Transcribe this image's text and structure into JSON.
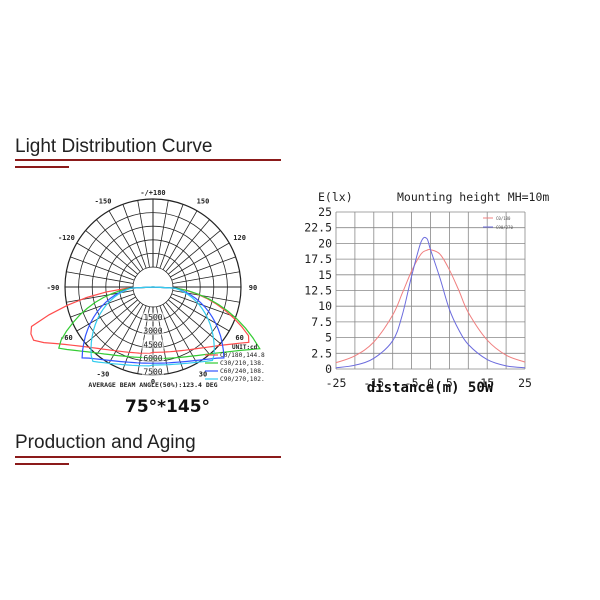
{
  "sections": [
    {
      "title": "Light Distribution Curve"
    },
    {
      "title": "Production and Aging"
    }
  ],
  "polar_chart": {
    "caption": "75°*145°",
    "angle_labels": [
      {
        "label": "-/+180",
        "angle": 180
      },
      {
        "label": "-150",
        "angle": -150
      },
      {
        "label": "150",
        "angle": 150
      },
      {
        "label": "-120",
        "angle": -120
      },
      {
        "label": "120",
        "angle": 120
      },
      {
        "label": "-90",
        "angle": -90
      },
      {
        "label": "90",
        "angle": 90
      },
      {
        "label": "-60",
        "angle": -60
      },
      {
        "label": "60",
        "angle": 60
      },
      {
        "label": "-30",
        "angle": -30
      },
      {
        "label": "30",
        "angle": 30
      },
      {
        "label": "0",
        "angle": 0
      }
    ],
    "radial_labels": [
      "1500",
      "3000",
      "4500",
      "6000",
      "7500"
    ],
    "unit_label": "UNIT:cd",
    "footer": "AVERAGE BEAM ANGLE(50%):123.4 DEG",
    "legend": [
      {
        "label": "C0/180,144.8",
        "color": "#ff4d4d"
      },
      {
        "label": "C30/210,138.",
        "color": "#33cc33"
      },
      {
        "label": "C60/240,108.",
        "color": "#3355ff"
      },
      {
        "label": "C90/270,102.",
        "color": "#33ccee"
      }
    ]
  },
  "chart_data": {
    "type": "line",
    "title": "Mounting height  MH=10m",
    "xlabel": "distance(m) 50W",
    "ylabel": "E(lx)",
    "xlim": [
      -25,
      25
    ],
    "ylim": [
      0,
      25
    ],
    "x_ticks": [
      "-25",
      "-15",
      "-5",
      "0",
      "5",
      "15",
      "25"
    ],
    "x_tick_values": [
      -25,
      -15,
      -5,
      0,
      5,
      15,
      25
    ],
    "y_ticks": [
      "0",
      "2.5",
      "5",
      "7.5",
      "10",
      "12.5",
      "15",
      "17.5",
      "20",
      "22.5",
      "25"
    ],
    "grid": true,
    "legend_position": "upper right",
    "x": [
      -25,
      -20,
      -15,
      -10,
      -7.5,
      -5,
      -2.5,
      -1,
      0,
      2.5,
      5,
      7.5,
      10,
      15,
      20,
      25
    ],
    "series": [
      {
        "name": "C0/180",
        "color": "#f08080",
        "values": [
          1.0,
          2.1,
          4.3,
          8.6,
          12.0,
          15.6,
          18.3,
          18.9,
          19.0,
          18.3,
          15.8,
          12.5,
          9.0,
          4.6,
          2.2,
          1.1
        ]
      },
      {
        "name": "C90/270",
        "color": "#6b6bdd",
        "values": [
          0.2,
          0.6,
          1.7,
          4.5,
          8.5,
          14.8,
          20.2,
          20.8,
          19.0,
          14.5,
          9.5,
          6.2,
          3.9,
          1.5,
          0.5,
          0.2
        ]
      }
    ]
  }
}
